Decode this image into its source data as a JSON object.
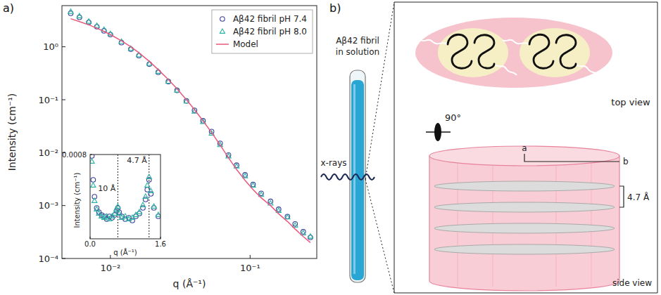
{
  "chart_data": [
    {
      "type": "scatter",
      "panel": "a)",
      "log": true,
      "xlabel": "q (Å⁻¹)",
      "ylabel": "Intensity (cm⁻¹)",
      "x": [
        0.0052,
        0.006,
        0.007,
        0.008,
        0.009,
        0.01,
        0.012,
        0.014,
        0.016,
        0.019,
        0.022,
        0.026,
        0.03,
        0.035,
        0.04,
        0.046,
        0.053,
        0.061,
        0.07,
        0.08,
        0.092,
        0.105,
        0.12,
        0.14,
        0.16,
        0.185,
        0.21,
        0.24,
        0.27
      ],
      "series": [
        {
          "name": "Aβ42 fibril pH 7.4",
          "color": "#3a3f9c",
          "type": "scatter",
          "marker": "circle",
          "values": [
            4.3,
            3.6,
            2.9,
            2.4,
            2.0,
            1.7,
            1.2,
            0.9,
            0.68,
            0.47,
            0.33,
            0.22,
            0.15,
            0.095,
            0.063,
            0.04,
            0.025,
            0.015,
            0.009,
            0.0058,
            0.0038,
            0.0025,
            0.0017,
            0.0012,
            0.00085,
            0.00062,
            0.00045,
            0.00032,
            0.00025
          ]
        },
        {
          "name": "Aβ42 fibril pH 8.0",
          "color": "#2bb3a3",
          "type": "scatter",
          "marker": "triangle",
          "values": [
            4.6,
            3.8,
            3.0,
            2.5,
            2.1,
            1.75,
            1.25,
            0.92,
            0.7,
            0.48,
            0.34,
            0.22,
            0.15,
            0.093,
            0.06,
            0.038,
            0.023,
            0.014,
            0.0085,
            0.0055,
            0.0036,
            0.0024,
            0.0016,
            0.0011,
            0.0008,
            0.0006,
            0.00042,
            0.0003,
            0.00026
          ]
        },
        {
          "name": "Model",
          "color": "#e9587d",
          "type": "line",
          "line_style": "solid",
          "values": [
            3.4,
            3.0,
            2.6,
            2.25,
            1.95,
            1.7,
            1.3,
            1.0,
            0.77,
            0.53,
            0.37,
            0.24,
            0.16,
            0.1,
            0.065,
            0.04,
            0.024,
            0.014,
            0.008,
            0.0048,
            0.003,
            0.002,
            0.0014,
            0.001,
            0.0007,
            0.0005,
            0.00036,
            0.00026,
            0.0002
          ]
        }
      ],
      "xlim": [
        0.0045,
        0.3
      ],
      "ylim": [
        0.0001,
        6
      ],
      "xticks": [
        {
          "value": 0.01,
          "label": "10⁻²"
        },
        {
          "value": 0.1,
          "label": "10⁻¹"
        }
      ],
      "yticks": [
        {
          "value": 0.0001,
          "label": "10⁻⁴"
        },
        {
          "value": 0.001,
          "label": "10⁻³"
        },
        {
          "value": 0.01,
          "label": "10⁻²"
        },
        {
          "value": 0.1,
          "label": "10⁻¹"
        },
        {
          "value": 1,
          "label": "10⁰"
        }
      ],
      "legend": "top-right"
    },
    {
      "type": "scatter",
      "xlabel": "q (Å⁻¹)",
      "ylabel": "Intensity (cm⁻¹)",
      "x": [
        0.04,
        0.07,
        0.1,
        0.15,
        0.2,
        0.26,
        0.32,
        0.38,
        0.44,
        0.5,
        0.56,
        0.6,
        0.63,
        0.66,
        0.72,
        0.8,
        0.88,
        0.96,
        1.04,
        1.12,
        1.2,
        1.26,
        1.3,
        1.34,
        1.38,
        1.45,
        1.55
      ],
      "series": [
        {
          "color": "#3a3f9c",
          "marker": "circle",
          "values": [
            0.00079,
            0.00062,
            0.0005,
            0.00042,
            0.00039,
            0.00037,
            0.00036,
            0.00034,
            0.00036,
            0.00035,
            0.00037,
            0.0004,
            0.00042,
            0.00039,
            0.00036,
            0.00034,
            0.00035,
            0.00033,
            0.00036,
            0.00038,
            0.00042,
            0.00048,
            0.00055,
            0.00062,
            0.00052,
            0.00042,
            0.00036
          ]
        },
        {
          "color": "#2bb3a3",
          "marker": "triangle",
          "values": [
            0.00075,
            0.00058,
            0.00047,
            0.00041,
            0.00038,
            0.00036,
            0.00035,
            0.00036,
            0.00034,
            0.00036,
            0.00038,
            0.00041,
            0.00043,
            0.00038,
            0.00035,
            0.00036,
            0.00034,
            0.00035,
            0.00037,
            0.00039,
            0.00044,
            0.0005,
            0.00058,
            0.00064,
            0.00054,
            0.00043,
            0.00037
          ]
        }
      ],
      "xlim": [
        0,
        1.6
      ],
      "ylim": [
        0.0002,
        0.0008
      ],
      "xticks": [
        {
          "value": 0,
          "label": "0.0"
        },
        {
          "value": 1.6,
          "label": "1.6"
        }
      ],
      "yticks": [
        {
          "value": 0.0008,
          "label": "0.0008"
        }
      ],
      "annotations": [
        {
          "x": 0.63,
          "label": "10 Å"
        },
        {
          "x": 1.34,
          "label": "4.7 Å"
        }
      ]
    }
  ],
  "diagram": {
    "panel": "b)",
    "sample": [
      "Aβ42 fibril",
      "in solution"
    ],
    "beam": "x-rays",
    "top_view": "top view",
    "rotation": "90°",
    "side_view": "side view",
    "radius_labels": [
      "a",
      "b"
    ],
    "spacing": "4.7 Å"
  }
}
